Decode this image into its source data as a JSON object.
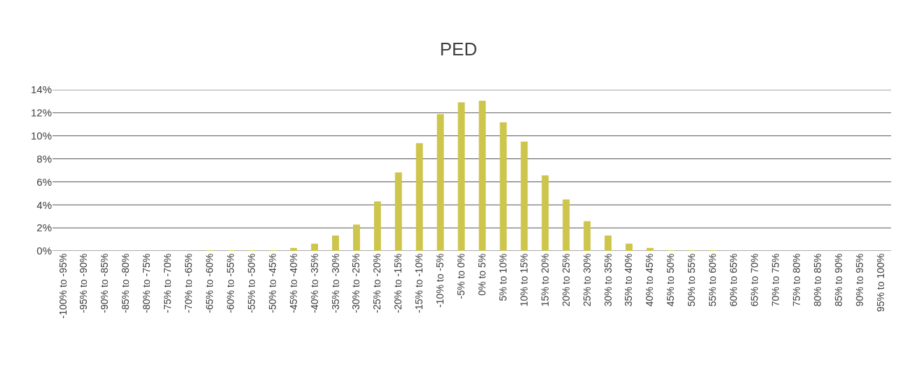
{
  "chart_data": {
    "type": "bar",
    "title": "PED",
    "categories": [
      "-100% to -95%",
      "-95% to -90%",
      "-90% to -85%",
      "-85% to -80%",
      "-80% to -75%",
      "-75% to -70%",
      "-70% to -65%",
      "-65% to -60%",
      "-60% to -55%",
      "-55% to -50%",
      "-50% to -45%",
      "-45% to -40%",
      "-40% to -35%",
      "-35% to -30%",
      "-30% to -25%",
      "-25% to -20%",
      "-20% to -15%",
      "-15% to -10%",
      "-10% to -5%",
      "-5% to 0%",
      "0% to 5%",
      "5% to 10%",
      "10% to 15%",
      "15% to 20%",
      "20% to 25%",
      "25% to 30%",
      "30% to 35%",
      "35% to 40%",
      "40% to 45%",
      "45% to 50%",
      "50% to 55%",
      "55% to 60%",
      "60% to 65%",
      "65% to 70%",
      "70% to 75%",
      "75% to 80%",
      "80% to 85%",
      "85% to 90%",
      "90% to 95%",
      "95% to 100%"
    ],
    "values": [
      0,
      0,
      0,
      0,
      0,
      0,
      0,
      0.02,
      0.02,
      0.02,
      0.02,
      0.26,
      0.63,
      1.34,
      2.29,
      4.3,
      6.82,
      9.36,
      11.88,
      12.9,
      13.04,
      11.17,
      9.5,
      6.56,
      4.47,
      2.58,
      1.34,
      0.63,
      0.26,
      0.02,
      0.02,
      0.02,
      0,
      0,
      0,
      0,
      0,
      0,
      0,
      0
    ],
    "color": "#cdc54c",
    "ylim": [
      0,
      14
    ],
    "yticks": [
      {
        "value": 0,
        "label": "0%"
      },
      {
        "value": 2,
        "label": "2%"
      },
      {
        "value": 4,
        "label": "4%"
      },
      {
        "value": 6,
        "label": "6%"
      },
      {
        "value": 8,
        "label": "8%"
      },
      {
        "value": 10,
        "label": "10%"
      },
      {
        "value": 12,
        "label": "12%"
      },
      {
        "value": 14,
        "label": "14%"
      }
    ],
    "grid": "y"
  }
}
